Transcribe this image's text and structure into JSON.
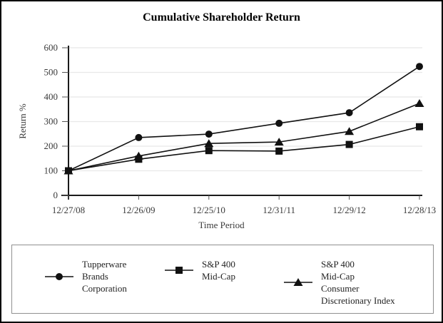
{
  "title": "Cumulative Shareholder Return",
  "chart_data": {
    "type": "line",
    "title": "Cumulative Shareholder Return",
    "xlabel": "Time Period",
    "ylabel": "Return %",
    "ylim": [
      0,
      600
    ],
    "yticks": [
      0,
      100,
      200,
      300,
      400,
      500,
      600
    ],
    "grid": true,
    "legend_position": "bottom",
    "categories": [
      "12/27/08",
      "12/26/09",
      "12/25/10",
      "12/31/11",
      "12/29/12",
      "12/28/13"
    ],
    "series": [
      {
        "name": "Tupperware Brands Corporation",
        "marker": "circle",
        "values": [
          100,
          235,
          249,
          293,
          336,
          524
        ]
      },
      {
        "name": "S&P 400 Mid-Cap Consumer Discretionary Index",
        "marker": "triangle",
        "values": [
          100,
          160,
          211,
          217,
          260,
          374
        ]
      },
      {
        "name": "S&P 400 Mid-Cap",
        "marker": "square",
        "values": [
          100,
          147,
          182,
          180,
          207,
          279
        ]
      }
    ]
  },
  "legend": {
    "entries": [
      {
        "label": "Tupperware\nBrands\nCorporation",
        "marker": "circle"
      },
      {
        "label": "S&P 400\nMid-Cap",
        "marker": "square"
      },
      {
        "label": "S&P 400\nMid-Cap\nConsumer\nDiscretionary Index",
        "marker": "triangle"
      }
    ]
  }
}
